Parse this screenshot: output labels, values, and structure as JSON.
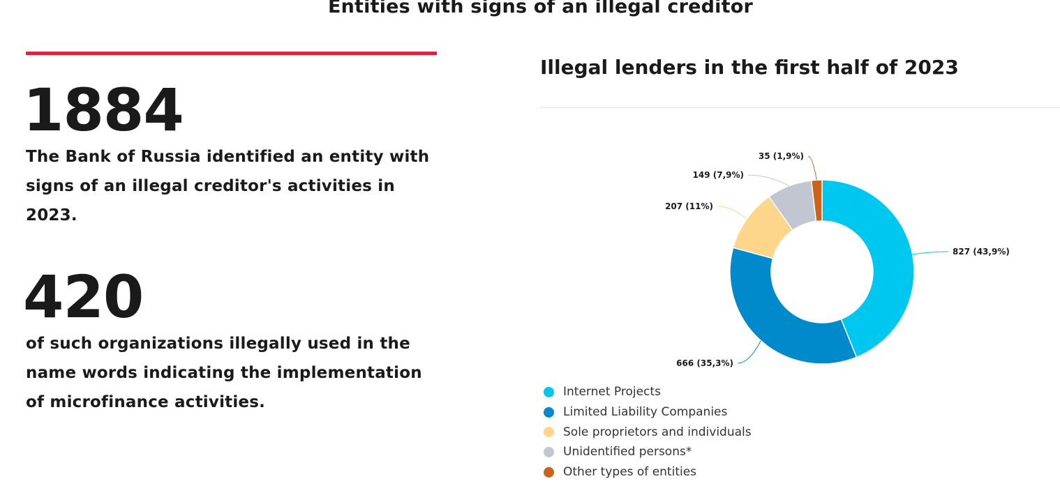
{
  "page": {
    "title": "Entities with signs of an illegal creditor",
    "accent_color": "#d7263d"
  },
  "stats": [
    {
      "value": "1884",
      "text": "The Bank of Russia identified an entity with signs of an illegal creditor's activities in 2023."
    },
    {
      "value": "420",
      "text": "of such organizations illegally used in the name words indicating the implementation of microfinance activities."
    }
  ],
  "chart_data": {
    "type": "pie",
    "style": "donut",
    "title": "Illegal lenders in the first half of 2023",
    "categories": [
      "Internet Projects",
      "Limited Liability Companies",
      "Sole proprietors and individuals",
      "Unidentified persons*",
      "Other types of entities"
    ],
    "values": [
      827,
      666,
      207,
      149,
      35
    ],
    "percent_labels": [
      "43,9%",
      "35,3%",
      "11%",
      "7,9%",
      "1,9%"
    ],
    "data_labels": [
      "827 (43,9%)",
      "666 (35,3%)",
      "207 (11%)",
      "149 (7,9%)",
      "35 (1,9%)"
    ],
    "colors": [
      "#00c7f0",
      "#008acc",
      "#fdd68b",
      "#c1c6d0",
      "#c8651a"
    ],
    "legend_position": "bottom"
  }
}
